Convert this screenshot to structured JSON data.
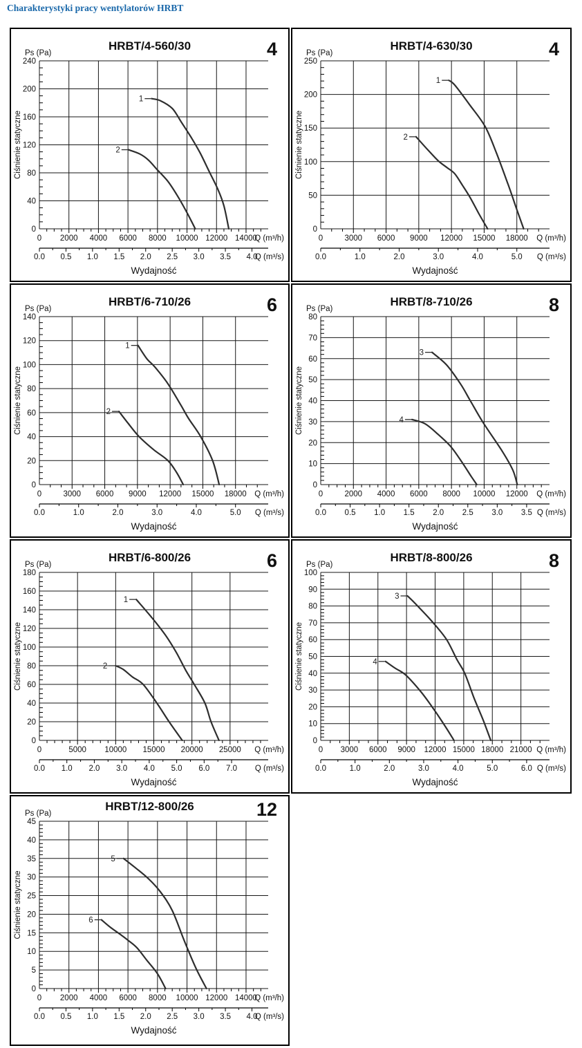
{
  "page": {
    "title": "Charakterystyki pracy wentylatorów HRBT",
    "title_color": "#1a68aa",
    "background": "#ffffff",
    "curve_color": "#2e2e2e",
    "grid_color": "#161616"
  },
  "shared": {
    "y_unit_label": "Ps (Pa)",
    "y_axis_label": "Ciśnienie statyczne",
    "x_axis_label": "Wydajność",
    "x_unit_hour": "Q (m³/h)",
    "x_unit_sec": "Q (m³/s)"
  },
  "chart_data": [
    {
      "type": "line",
      "title": "HRBT/4-560/30",
      "badge": "4",
      "ylabel": "Ciśnienie statyczne",
      "y_top_label": "Ps (Pa)",
      "xlabel": "Wydajność",
      "ylim": [
        0,
        240
      ],
      "y_step": 40,
      "y_minor": 10,
      "xlim": [
        0,
        15500
      ],
      "x_label_max": 14000,
      "x_step": 2000,
      "x_minor": 500,
      "s_max": 4.0,
      "s_step": 0.5,
      "s_minor": 0.25,
      "series": [
        {
          "name": "1",
          "points": [
            [
              7600,
              186
            ],
            [
              8200,
              183
            ],
            [
              9000,
              172
            ],
            [
              9600,
              153
            ],
            [
              10300,
              130
            ],
            [
              10900,
              108
            ],
            [
              11500,
              82
            ],
            [
              12100,
              56
            ],
            [
              12500,
              33
            ],
            [
              12830,
              0
            ]
          ]
        },
        {
          "name": "2",
          "points": [
            [
              6030,
              113
            ],
            [
              6800,
              107
            ],
            [
              7400,
              98
            ],
            [
              8000,
              84
            ],
            [
              8700,
              68
            ],
            [
              9300,
              49
            ],
            [
              9900,
              27
            ],
            [
              10560,
              0
            ]
          ]
        }
      ]
    },
    {
      "type": "line",
      "title": "HRBT/4-630/30",
      "badge": "4",
      "ylabel": "Ciśnienie statyczne",
      "y_top_label": "Ps (Pa)",
      "xlabel": "Wydajność",
      "ylim": [
        0,
        250
      ],
      "y_step": 50,
      "y_minor": 10,
      "xlim": [
        0,
        21000
      ],
      "x_label_max": 18000,
      "x_step": 3000,
      "x_minor": 1000,
      "s_max": 5.0,
      "s_step": 1.0,
      "s_minor": 0.5,
      "series": [
        {
          "name": "1",
          "points": [
            [
              11750,
              221
            ],
            [
              12300,
              214
            ],
            [
              13700,
              184
            ],
            [
              15100,
              152
            ],
            [
              16100,
              114
            ],
            [
              17200,
              66
            ],
            [
              17950,
              31
            ],
            [
              18630,
              0
            ]
          ]
        },
        {
          "name": "2",
          "points": [
            [
              8750,
              137
            ],
            [
              9800,
              118
            ],
            [
              10800,
              101
            ],
            [
              11600,
              91
            ],
            [
              12300,
              82
            ],
            [
              13000,
              65
            ],
            [
              13700,
              47
            ],
            [
              14500,
              23
            ],
            [
              15320,
              0
            ]
          ]
        }
      ]
    },
    {
      "type": "line",
      "title": "HRBT/6-710/26",
      "badge": "6",
      "ylabel": "Ciśnienie statyczne",
      "y_top_label": "Ps (Pa)",
      "xlabel": "Wydajność",
      "ylim": [
        0,
        140
      ],
      "y_step": 20,
      "y_minor": 5,
      "xlim": [
        0,
        21000
      ],
      "x_label_max": 18000,
      "x_step": 3000,
      "x_minor": 1000,
      "s_max": 5.0,
      "s_step": 1.0,
      "s_minor": 0.5,
      "series": [
        {
          "name": "1",
          "points": [
            [
              9050,
              116
            ],
            [
              9850,
              105
            ],
            [
              10600,
              98
            ],
            [
              11800,
              84
            ],
            [
              13000,
              66
            ],
            [
              13700,
              55
            ],
            [
              14800,
              40
            ],
            [
              15900,
              20
            ],
            [
              16500,
              0
            ]
          ]
        },
        {
          "name": "2",
          "points": [
            [
              7300,
              61
            ],
            [
              8150,
              51
            ],
            [
              9150,
              40
            ],
            [
              10500,
              29
            ],
            [
              11800,
              20
            ],
            [
              12600,
              10
            ],
            [
              13200,
              0
            ]
          ]
        }
      ]
    },
    {
      "type": "line",
      "title": "HRBT/8-710/26",
      "badge": "8",
      "ylabel": "Ciśnienie statyczne",
      "y_top_label": "Ps (Pa)",
      "xlabel": "Wydajność",
      "ylim": [
        0,
        80
      ],
      "y_step": 10,
      "y_minor": 2,
      "xlim": [
        0,
        14000
      ],
      "x_label_max": 12000,
      "x_step": 2000,
      "x_minor": 500,
      "s_max": 3.5,
      "s_step": 0.5,
      "s_minor": 0.25,
      "series": [
        {
          "name": "3",
          "points": [
            [
              6810,
              63
            ],
            [
              7700,
              57
            ],
            [
              8550,
              48
            ],
            [
              9150,
              40
            ],
            [
              9900,
              30
            ],
            [
              11100,
              16
            ],
            [
              11750,
              7
            ],
            [
              12030,
              0
            ]
          ]
        },
        {
          "name": "4",
          "points": [
            [
              5580,
              31
            ],
            [
              6380,
              29
            ],
            [
              7170,
              24
            ],
            [
              7970,
              18
            ],
            [
              8700,
              10
            ],
            [
              9200,
              4
            ],
            [
              9550,
              0
            ]
          ]
        }
      ]
    },
    {
      "type": "line",
      "title": "HRBT/6-800/26",
      "badge": "6",
      "ylabel": "Ciśnienie statyczne",
      "y_top_label": "Ps (Pa)",
      "xlabel": "Wydajność",
      "ylim": [
        0,
        180
      ],
      "y_step": 20,
      "y_minor": 5,
      "xlim": [
        0,
        30000
      ],
      "x_label_max": 25000,
      "x_step": 5000,
      "x_minor": 1000,
      "s_max": 7.0,
      "s_step": 1.0,
      "s_minor": 0.5,
      "series": [
        {
          "name": "1",
          "points": [
            [
              12700,
              151
            ],
            [
              14800,
              131
            ],
            [
              16500,
              113
            ],
            [
              17900,
              95
            ],
            [
              19200,
              75
            ],
            [
              20300,
              60
            ],
            [
              21700,
              40
            ],
            [
              22500,
              20
            ],
            [
              23550,
              0
            ]
          ]
        },
        {
          "name": "2",
          "points": [
            [
              10000,
              80
            ],
            [
              11000,
              76
            ],
            [
              12200,
              68
            ],
            [
              13600,
              60
            ],
            [
              15400,
              40
            ],
            [
              17000,
              20
            ],
            [
              18730,
              0
            ]
          ]
        }
      ]
    },
    {
      "type": "line",
      "title": "HRBT/8-800/26",
      "badge": "8",
      "ylabel": "Ciśnienie statyczne",
      "y_top_label": "Ps (Pa)",
      "xlabel": "Wydajność",
      "ylim": [
        0,
        100
      ],
      "y_step": 10,
      "y_minor": 2,
      "xlim": [
        0,
        24000
      ],
      "x_label_max": 21000,
      "x_step": 3000,
      "x_minor": 1000,
      "s_max": 6.0,
      "s_step": 1.0,
      "s_minor": 0.5,
      "series": [
        {
          "name": "3",
          "points": [
            [
              9100,
              86
            ],
            [
              10000,
              81
            ],
            [
              11800,
              70
            ],
            [
              13200,
              60
            ],
            [
              14300,
              48
            ],
            [
              15100,
              40
            ],
            [
              16100,
              25
            ],
            [
              17050,
              12
            ],
            [
              17840,
              0
            ]
          ]
        },
        {
          "name": "4",
          "points": [
            [
              6800,
              47
            ],
            [
              7800,
              43
            ],
            [
              8900,
              39
            ],
            [
              10500,
              29
            ],
            [
              11800,
              19
            ],
            [
              13100,
              8
            ],
            [
              13980,
              0
            ]
          ]
        }
      ]
    },
    {
      "type": "line",
      "title": "HRBT/12-800/26",
      "badge": "12",
      "ylabel": "Ciśnienie statyczne",
      "y_top_label": "Ps (Pa)",
      "xlabel": "Wydajność",
      "ylim": [
        0,
        45
      ],
      "y_step": 5,
      "y_minor": 1,
      "xlim": [
        0,
        15500
      ],
      "x_label_max": 14000,
      "x_step": 2000,
      "x_minor": 500,
      "s_max": 4.0,
      "s_step": 0.5,
      "s_minor": 0.25,
      "series": [
        {
          "name": "5",
          "points": [
            [
              5700,
              35
            ],
            [
              6500,
              32.5
            ],
            [
              7400,
              29.5
            ],
            [
              8200,
              26
            ],
            [
              9000,
              21
            ],
            [
              9800,
              13
            ],
            [
              10600,
              5.5
            ],
            [
              11320,
              0
            ]
          ]
        },
        {
          "name": "6",
          "points": [
            [
              4200,
              18.5
            ],
            [
              4800,
              16.5
            ],
            [
              5500,
              14.5
            ],
            [
              6000,
              13
            ],
            [
              6600,
              11
            ],
            [
              7300,
              7.5
            ],
            [
              8000,
              4
            ],
            [
              8550,
              0
            ]
          ]
        }
      ]
    }
  ]
}
